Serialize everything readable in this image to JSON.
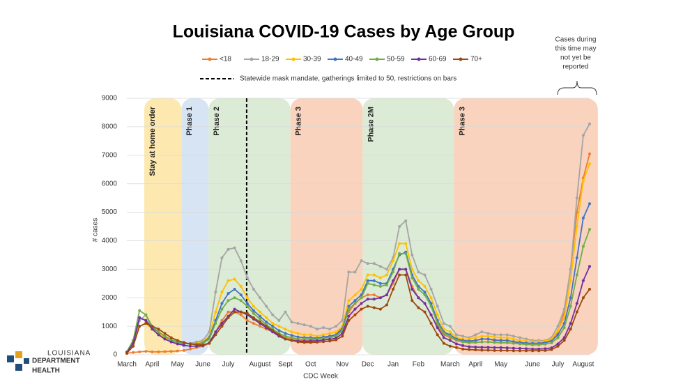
{
  "chart_data": {
    "type": "line",
    "title": "Louisiana COVID-19 Cases by Age Group",
    "x_label": "CDC Week",
    "y_label": "# cases",
    "mask_note": "Statewide mask mandate, gatherings limited to 50, restrictions on bars",
    "report_note": [
      "Cases during",
      "this time may",
      "not yet be",
      "reported"
    ],
    "phases": [
      "Stay at home order",
      "Phase 1",
      "Phase 2",
      "Phase 3",
      "Phase 2M",
      "Phase 3"
    ],
    "categories": [
      "March",
      null,
      null,
      null,
      "April",
      null,
      null,
      null,
      "May",
      null,
      null,
      null,
      "June",
      null,
      null,
      null,
      "July",
      null,
      null,
      null,
      null,
      "August",
      null,
      null,
      null,
      "Sept",
      null,
      null,
      null,
      "Oct",
      null,
      null,
      null,
      null,
      "Nov",
      null,
      null,
      null,
      "Dec",
      null,
      null,
      null,
      "Jan",
      null,
      null,
      null,
      "Feb",
      null,
      null,
      null,
      null,
      "March",
      null,
      null,
      null,
      "April",
      null,
      null,
      null,
      "May",
      null,
      null,
      null,
      null,
      "June",
      null,
      null,
      null,
      "July",
      null,
      null,
      null,
      "August",
      null
    ],
    "ylim": [
      0,
      9000
    ],
    "yticks": [
      0,
      1000,
      2000,
      3000,
      4000,
      5000,
      6000,
      7000,
      8000,
      9000
    ],
    "grid": true,
    "series": [
      {
        "name": "<18",
        "color": "#ed7d31",
        "values": [
          50,
          80,
          100,
          120,
          100,
          100,
          110,
          120,
          130,
          150,
          200,
          250,
          300,
          400,
          800,
          1200,
          1500,
          1500,
          1400,
          1200,
          1100,
          1000,
          900,
          800,
          700,
          600,
          550,
          500,
          500,
          500,
          550,
          600,
          650,
          700,
          1000,
          1500,
          1800,
          2000,
          2100,
          2100,
          2000,
          2100,
          2500,
          3000,
          3000,
          2400,
          2000,
          1800,
          1400,
          1000,
          700,
          600,
          500,
          450,
          450,
          500,
          550,
          550,
          500,
          500,
          500,
          450,
          400,
          400,
          400,
          400,
          450,
          500,
          800,
          1500,
          3000,
          5000,
          6200,
          7050
        ]
      },
      {
        "name": "18-29",
        "color": "#a5a5a5",
        "values": [
          100,
          300,
          1200,
          1400,
          900,
          700,
          550,
          450,
          400,
          380,
          400,
          450,
          500,
          800,
          2200,
          3400,
          3700,
          3750,
          3300,
          2700,
          2300,
          2000,
          1700,
          1400,
          1200,
          1500,
          1150,
          1100,
          1050,
          1000,
          900,
          950,
          900,
          1000,
          1200,
          2900,
          2900,
          3300,
          3200,
          3200,
          3100,
          3000,
          3400,
          4500,
          4700,
          3500,
          2900,
          2800,
          2300,
          1700,
          1100,
          1000,
          700,
          650,
          600,
          700,
          800,
          750,
          700,
          700,
          700,
          650,
          600,
          550,
          500,
          500,
          500,
          600,
          1000,
          1600,
          3000,
          5500,
          7700,
          8100
        ]
      },
      {
        "name": "30-39",
        "color": "#ffc000",
        "values": [
          100,
          400,
          1000,
          1100,
          900,
          750,
          600,
          500,
          450,
          400,
          380,
          400,
          450,
          650,
          1500,
          2200,
          2600,
          2650,
          2400,
          2000,
          1700,
          1500,
          1300,
          1100,
          1000,
          900,
          800,
          750,
          700,
          700,
          650,
          700,
          750,
          800,
          1000,
          1900,
          2100,
          2300,
          2800,
          2800,
          2700,
          2800,
          3300,
          3900,
          3900,
          3000,
          2600,
          2400,
          2000,
          1400,
          900,
          800,
          600,
          550,
          550,
          600,
          650,
          650,
          620,
          600,
          600,
          550,
          500,
          480,
          460,
          460,
          480,
          550,
          850,
          1300,
          2600,
          4500,
          6100,
          6700
        ]
      },
      {
        "name": "40-49",
        "color": "#4472c4",
        "values": [
          100,
          500,
          1300,
          1200,
          950,
          800,
          650,
          520,
          450,
          400,
          380,
          380,
          420,
          600,
          1200,
          1800,
          2150,
          2300,
          2100,
          1800,
          1550,
          1350,
          1150,
          1000,
          850,
          750,
          680,
          620,
          600,
          600,
          580,
          620,
          650,
          700,
          900,
          1700,
          1900,
          2100,
          2600,
          2600,
          2500,
          2500,
          3000,
          3500,
          3600,
          2800,
          2400,
          2200,
          1800,
          1200,
          800,
          700,
          550,
          500,
          480,
          500,
          550,
          550,
          520,
          500,
          500,
          460,
          430,
          410,
          400,
          400,
          420,
          480,
          700,
          1100,
          2000,
          3400,
          4800,
          5300
        ]
      },
      {
        "name": "50-59",
        "color": "#70ad47",
        "values": [
          100,
          500,
          1550,
          1400,
          1000,
          800,
          650,
          530,
          460,
          420,
          380,
          380,
          400,
          550,
          1100,
          1600,
          1900,
          2000,
          1900,
          1700,
          1450,
          1250,
          1050,
          900,
          750,
          650,
          600,
          550,
          550,
          550,
          550,
          580,
          600,
          650,
          850,
          1600,
          1800,
          2000,
          2500,
          2450,
          2400,
          2450,
          2900,
          3550,
          3550,
          2700,
          2300,
          2100,
          1700,
          1100,
          750,
          650,
          500,
          450,
          420,
          430,
          450,
          450,
          430,
          420,
          420,
          400,
          380,
          360,
          350,
          350,
          370,
          420,
          600,
          950,
          1700,
          2800,
          3800,
          4400
        ]
      },
      {
        "name": "60-69",
        "color": "#7030a0",
        "values": [
          80,
          400,
          1300,
          1200,
          900,
          700,
          550,
          450,
          380,
          330,
          300,
          300,
          320,
          420,
          800,
          1100,
          1350,
          1600,
          1500,
          1400,
          1250,
          1100,
          950,
          800,
          650,
          550,
          500,
          480,
          470,
          480,
          490,
          520,
          540,
          580,
          750,
          1350,
          1600,
          1800,
          1950,
          1950,
          2000,
          2100,
          2600,
          3000,
          3000,
          2300,
          2000,
          1800,
          1400,
          950,
          600,
          500,
          380,
          320,
          280,
          270,
          260,
          260,
          250,
          250,
          240,
          230,
          220,
          210,
          200,
          200,
          210,
          240,
          380,
          600,
          1100,
          1800,
          2600,
          3100
        ]
      },
      {
        "name": "70+",
        "color": "#9e480e",
        "values": [
          50,
          300,
          1000,
          1100,
          1000,
          900,
          750,
          600,
          500,
          430,
          380,
          350,
          350,
          400,
          700,
          1000,
          1300,
          1500,
          1500,
          1450,
          1300,
          1150,
          1000,
          850,
          700,
          550,
          500,
          450,
          430,
          430,
          440,
          460,
          480,
          520,
          650,
          1200,
          1400,
          1600,
          1700,
          1650,
          1600,
          1750,
          2300,
          2800,
          2800,
          1900,
          1650,
          1500,
          1100,
          700,
          400,
          300,
          250,
          200,
          180,
          170,
          160,
          160,
          150,
          150,
          150,
          140,
          140,
          140,
          140,
          140,
          150,
          180,
          300,
          500,
          900,
          1500,
          2000,
          2300
        ]
      }
    ]
  },
  "logo": {
    "top": "LOUISIANA",
    "middle": "DEPARTMENT",
    "bottom": "HEALTH"
  }
}
